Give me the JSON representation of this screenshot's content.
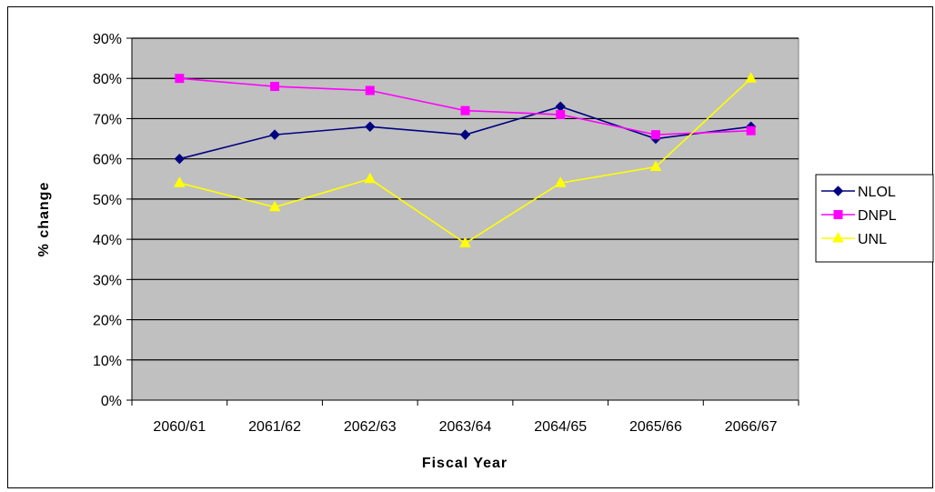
{
  "chart_data": {
    "type": "line",
    "title": "",
    "xlabel": "Fiscal Year",
    "ylabel": "% change",
    "categories": [
      "2060/61",
      "2061/62",
      "2062/63",
      "2063/64",
      "2064/65",
      "2065/66",
      "2066/67"
    ],
    "ylim": [
      0,
      90
    ],
    "yticks": [
      "0%",
      "10%",
      "20%",
      "30%",
      "40%",
      "50%",
      "60%",
      "70%",
      "80%",
      "90%"
    ],
    "grid": true,
    "legend": "right",
    "plot_background": "#C0C0C0",
    "series": [
      {
        "name": "NLOL",
        "values": [
          60,
          66,
          68,
          66,
          73,
          65,
          68
        ],
        "color": "#000080",
        "marker": "diamond"
      },
      {
        "name": "DNPL",
        "values": [
          80,
          78,
          77,
          72,
          71,
          66,
          67
        ],
        "color": "#FF00FF",
        "marker": "square"
      },
      {
        "name": "UNL",
        "values": [
          54,
          48,
          55,
          39,
          54,
          58,
          80
        ],
        "color": "#FFFF00",
        "marker": "triangle"
      }
    ]
  }
}
